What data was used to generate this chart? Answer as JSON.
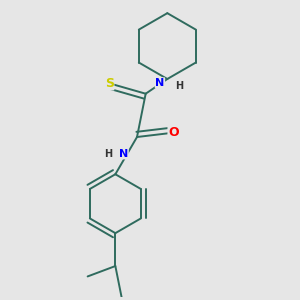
{
  "background_color": "#e6e6e6",
  "bond_color": "#2f6b5e",
  "atom_colors": {
    "S": "#cccc00",
    "N": "#0000ff",
    "O": "#ff0000"
  },
  "bond_lw": 1.4,
  "figsize": [
    3.0,
    3.0
  ],
  "dpi": 100,
  "xlim": [
    -0.5,
    1.5
  ],
  "ylim": [
    -1.8,
    1.6
  ]
}
